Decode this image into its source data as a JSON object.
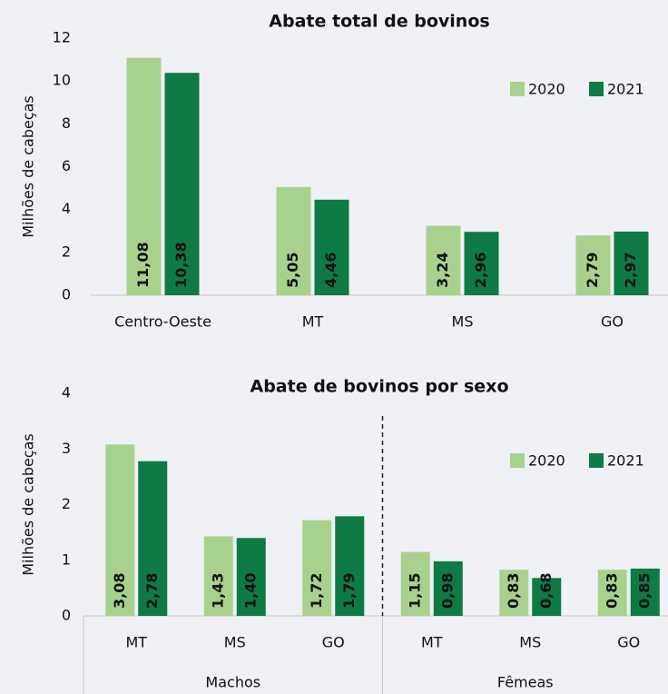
{
  "chart_data": [
    {
      "type": "bar",
      "title": "Abate total de bovinos",
      "ylabel": "Milhões de cabeças",
      "categories": [
        "Centro-Oeste",
        "MT",
        "MS",
        "GO"
      ],
      "series": [
        {
          "name": "2020",
          "color": "#a9d18e",
          "label_color": "#111111",
          "values": [
            11.08,
            5.05,
            3.24,
            2.79
          ],
          "value_labels": [
            "11,08",
            "5,05",
            "3,24",
            "2,79"
          ]
        },
        {
          "name": "2021",
          "color": "#0e7a45",
          "label_color": "#ffffff",
          "values": [
            10.38,
            4.46,
            2.96,
            2.97
          ],
          "value_labels": [
            "10,38",
            "4,46",
            "2,96",
            "2,97"
          ]
        }
      ],
      "ylim": [
        0,
        12
      ],
      "yticks": [
        0,
        2,
        4,
        6,
        8,
        10,
        12
      ],
      "legend": "upper right"
    },
    {
      "type": "bar",
      "title": "Abate de bovinos por sexo",
      "ylabel": "Milhões de cabeças",
      "groups": [
        {
          "label": "Machos",
          "categories": [
            "MT",
            "MS",
            "GO"
          ]
        },
        {
          "label": "Fêmeas",
          "categories": [
            "MT",
            "MS",
            "GO"
          ]
        }
      ],
      "series": [
        {
          "name": "2020",
          "color": "#a9d18e",
          "label_color": "#111111",
          "values": [
            3.08,
            1.43,
            1.72,
            1.15,
            0.83,
            0.83
          ],
          "value_labels": [
            "3,08",
            "1,43",
            "1,72",
            "1,15",
            "0,83",
            "0,83"
          ]
        },
        {
          "name": "2021",
          "color": "#0e7a45",
          "label_color": "#ffffff",
          "values": [
            2.78,
            1.4,
            1.79,
            0.98,
            0.68,
            0.85
          ],
          "value_labels": [
            "2,78",
            "1,40",
            "1,79",
            "0,98",
            "0,68",
            "0,85"
          ]
        }
      ],
      "ylim": [
        0,
        4
      ],
      "yticks": [
        0,
        1,
        2,
        3,
        4
      ],
      "legend": "upper right"
    }
  ]
}
